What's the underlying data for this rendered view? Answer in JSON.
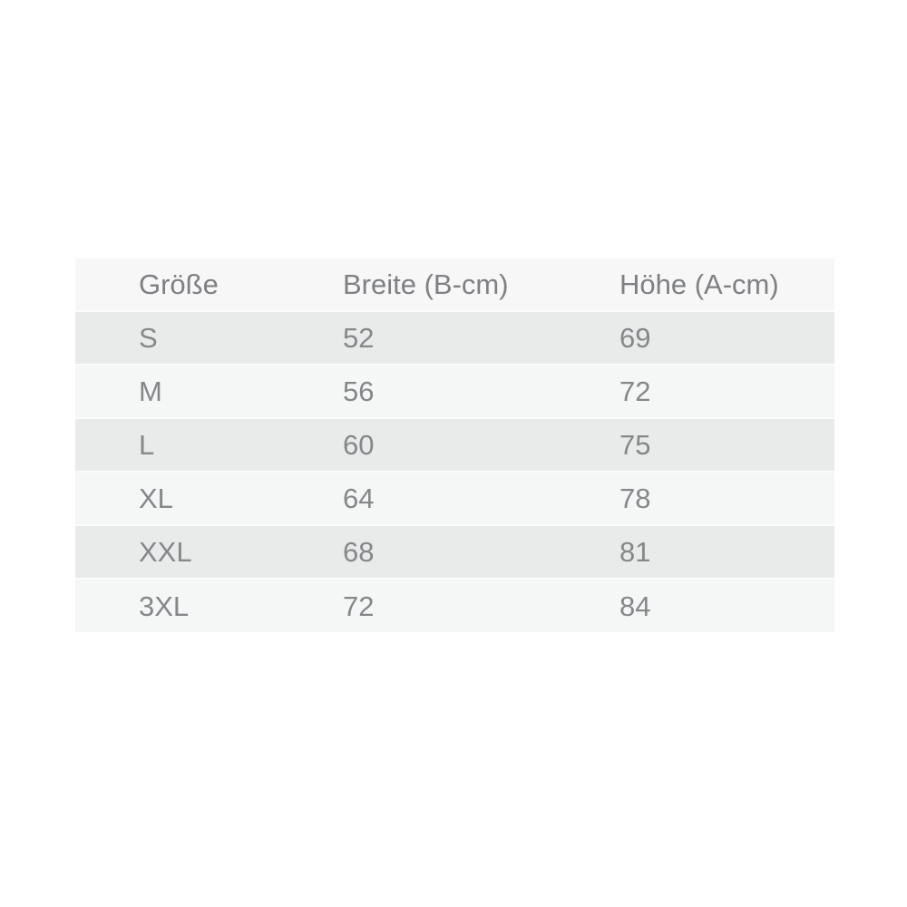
{
  "page": {
    "background": "#ffffff"
  },
  "size_table": {
    "columns": [
      {
        "label": "Größe"
      },
      {
        "label": "Breite (B-cm)"
      },
      {
        "label": "Höhe (A-cm)"
      }
    ],
    "rows": [
      {
        "size": "S",
        "breite": "52",
        "hoehe": "69"
      },
      {
        "size": "M",
        "breite": "56",
        "hoehe": "72"
      },
      {
        "size": "L",
        "breite": "60",
        "hoehe": "75"
      },
      {
        "size": "XL",
        "breite": "64",
        "hoehe": "78"
      },
      {
        "size": "XXL",
        "breite": "68",
        "hoehe": "81"
      },
      {
        "size": "3XL",
        "breite": "72",
        "hoehe": "84"
      }
    ],
    "colors": {
      "header_bg": "#f7f7f8",
      "row_odd_bg": "#e9eaea",
      "row_even_bg": "#f5f6f6",
      "separator": "#fbfbfc",
      "text": "#85878a"
    }
  },
  "chart_data": {
    "type": "table",
    "title": "",
    "columns": [
      "Größe",
      "Breite (B-cm)",
      "Höhe (A-cm)"
    ],
    "rows": [
      [
        "S",
        52,
        69
      ],
      [
        "M",
        56,
        72
      ],
      [
        "L",
        60,
        75
      ],
      [
        "XL",
        64,
        78
      ],
      [
        "XXL",
        68,
        81
      ],
      [
        "3XL",
        72,
        84
      ]
    ],
    "units": "cm",
    "layout": "zebra-striped rows, header row light gray, left-aligned text"
  }
}
